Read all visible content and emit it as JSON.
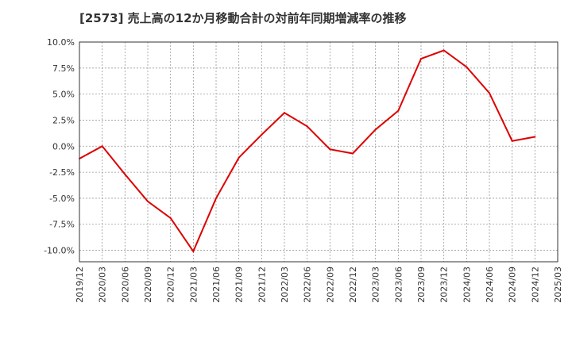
{
  "chart_data": {
    "type": "line",
    "title": "[2573]  売上高の12か月移動合計の対前年同期増減率の推移",
    "xlabel": "",
    "ylabel": "",
    "ylim": [
      -11.1,
      10.0
    ],
    "yticks": [
      10.0,
      7.5,
      5.0,
      2.5,
      0.0,
      -2.5,
      -5.0,
      -7.5,
      -10.0
    ],
    "ytick_labels": [
      "10.0%",
      "7.5%",
      "5.0%",
      "2.5%",
      "0.0%",
      "-2.5%",
      "-5.0%",
      "-7.5%",
      "-10.0%"
    ],
    "categories": [
      "2019/12",
      "2020/03",
      "2020/06",
      "2020/09",
      "2020/12",
      "2021/03",
      "2021/06",
      "2021/09",
      "2021/12",
      "2022/03",
      "2022/06",
      "2022/09",
      "2022/12",
      "2023/03",
      "2023/06",
      "2023/09",
      "2023/12",
      "2024/03",
      "2024/06",
      "2024/09",
      "2024/12",
      "2025/03"
    ],
    "series": [
      {
        "name": "対前年同期増減率",
        "color": "#dd0000",
        "values": [
          -1.2,
          0.0,
          -2.7,
          -5.3,
          -6.9,
          -10.1,
          -5.0,
          -1.1,
          1.1,
          3.2,
          1.9,
          -0.3,
          -0.7,
          1.6,
          3.4,
          8.4,
          9.2,
          7.6,
          5.1,
          0.5,
          0.9,
          null
        ]
      }
    ],
    "grid": true,
    "legend": "none"
  }
}
